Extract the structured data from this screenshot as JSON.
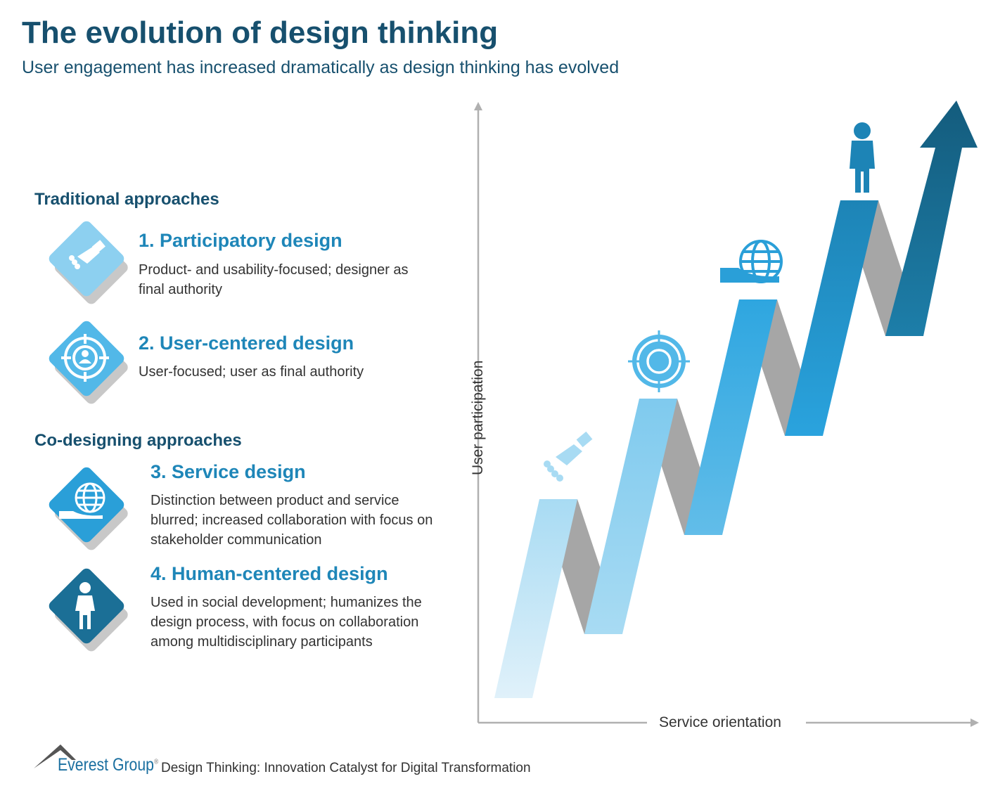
{
  "header": {
    "title": "The evolution of design thinking",
    "subtitle": "User engagement has increased dramatically as design thinking has evolved"
  },
  "sections": [
    {
      "label": "Traditional approaches"
    },
    {
      "label": "Co-designing approaches"
    }
  ],
  "items": [
    {
      "number": "1.",
      "title": "Participatory design",
      "description": "Product- and usability-focused; designer as final authority",
      "icon": "handshake-icon",
      "color": "#8dd0f0"
    },
    {
      "number": "2.",
      "title": "User-centered design",
      "description": "User-focused; user as final authority",
      "icon": "target-user-icon",
      "color": "#52b8e8"
    },
    {
      "number": "3.",
      "title": "Service design",
      "description": "Distinction between product and service blurred; increased collaboration with focus on stakeholder communication",
      "icon": "globe-hand-icon",
      "color": "#2a9fd8"
    },
    {
      "number": "4.",
      "title": "Human-centered design",
      "description": "Used in social development; humanizes the design process, with focus on collaboration among multidisciplinary participants",
      "icon": "person-icon",
      "color": "#1b6f96"
    }
  ],
  "chart": {
    "y_axis_label": "User participation",
    "x_axis_label": "Service orientation"
  },
  "footer": {
    "brand": "Everest Group",
    "registered": "®",
    "text": "Design Thinking: Innovation Catalyst for Digital Transformation"
  }
}
